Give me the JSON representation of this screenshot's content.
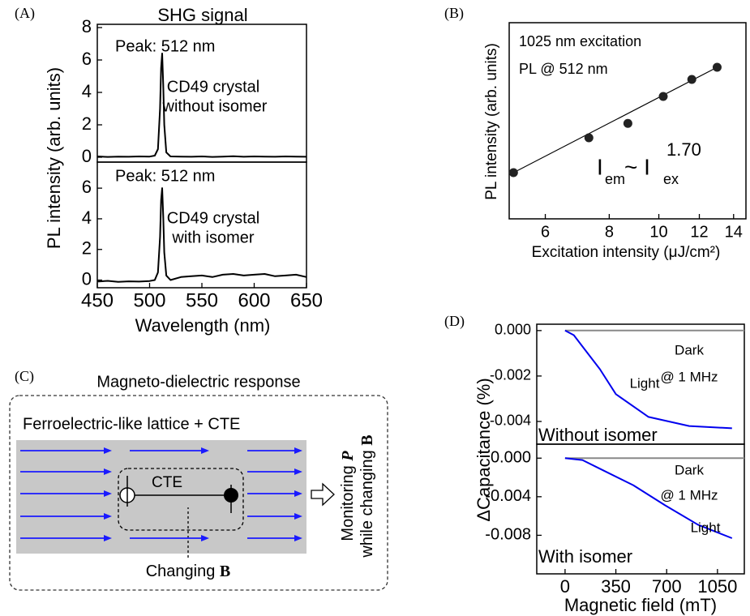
{
  "panel_labels": [
    "(A)",
    "(B)",
    "(C)",
    "(D)"
  ],
  "chart_data": [
    {
      "type": "line",
      "title": "SHG signal",
      "ylabel": "PL intensity (arb. units)",
      "annotations": [
        "Peak: 512 nm",
        "CD49 crystal",
        "without isomer"
      ],
      "x": [
        450,
        460,
        470,
        480,
        490,
        500,
        505,
        508,
        510,
        511,
        512,
        513,
        514,
        516,
        520,
        530,
        540,
        550,
        560,
        570,
        580,
        590,
        600,
        610,
        620,
        630,
        640,
        650
      ],
      "series": [
        {
          "color": "#000000",
          "values": [
            0.05,
            0.02,
            0.04,
            0.03,
            0.05,
            0.04,
            0.1,
            0.5,
            3.0,
            5.5,
            6.4,
            4.5,
            2.0,
            0.3,
            0.05,
            0.04,
            0.03,
            0.05,
            0.02,
            0.04,
            0.06,
            0.03,
            0.05,
            0.04,
            0.03,
            0.05,
            0.04,
            0.03
          ]
        }
      ],
      "xlim": [
        450,
        650
      ],
      "ylim": [
        -0.3,
        8.2
      ],
      "yticks": [
        0,
        2,
        4,
        6,
        8
      ]
    },
    {
      "type": "line",
      "xlabel": "Wavelength (nm)",
      "annotations": [
        "Peak: 512 nm",
        "CD49 crystal",
        "with isomer"
      ],
      "x": [
        450,
        460,
        470,
        480,
        490,
        500,
        505,
        508,
        510,
        511,
        512,
        513,
        514,
        516,
        520,
        530,
        540,
        550,
        560,
        570,
        580,
        590,
        600,
        610,
        620,
        630,
        640,
        650
      ],
      "series": [
        {
          "color": "#000000",
          "values": [
            -0.1,
            -0.05,
            -0.12,
            -0.08,
            -0.1,
            -0.06,
            0.0,
            0.5,
            2.8,
            5.2,
            6.0,
            4.2,
            1.8,
            0.3,
            0.0,
            0.2,
            0.25,
            0.3,
            0.2,
            0.35,
            0.4,
            0.3,
            0.35,
            0.4,
            0.25,
            0.3,
            0.35,
            0.2
          ]
        }
      ],
      "xlim": [
        450,
        650
      ],
      "ylim": [
        -0.5,
        7.7
      ],
      "xticks": [
        450,
        500,
        550,
        600,
        650
      ],
      "yticks": [
        0,
        2,
        4,
        6
      ]
    },
    {
      "type": "scatter",
      "xlabel": "Excitation intensity (μJ/cm²)",
      "ylabel": "PL intensity (arb. units)",
      "annotations": [
        "1025 nm excitation",
        "PL @ 512 nm"
      ],
      "formula": {
        "base": "I",
        "sub1": "em",
        "op": "~ I",
        "sub2": "ex",
        "exp": "1.70"
      },
      "x": [
        5.2,
        7.3,
        8.7,
        10.2,
        11.6,
        13.0
      ],
      "series": [
        {
          "color": "#222222",
          "values": [
            2.96,
            6.7,
            9.4,
            17.7,
            26.4,
            35.1
          ]
        }
      ],
      "fit": {
        "color": "#000000",
        "x": [
          5.2,
          13.0
        ],
        "values": [
          2.96,
          35.1
        ]
      },
      "xscale": "log",
      "yscale": "log",
      "xlim": [
        5.1,
        14.8
      ],
      "ylim": [
        1,
        100
      ],
      "xticks": [
        6,
        8,
        10,
        12,
        14
      ]
    },
    {
      "type": "line",
      "ylabel": "ΔCapacitance (%)",
      "annotations": [
        "@ 1 MHz",
        "Without isomer"
      ],
      "series": [
        {
          "name": "Dark",
          "color": "#888888",
          "x": [
            0,
            1235
          ],
          "values": [
            0,
            0
          ]
        },
        {
          "name": "Light",
          "color": "#0000ee",
          "x": [
            0,
            60,
            120,
            240,
            350,
            575,
            855,
            1150
          ],
          "values": [
            0,
            -0.0002,
            -0.0007,
            -0.0017,
            -0.0028,
            -0.0038,
            -0.0042,
            -0.0043
          ]
        }
      ],
      "xlim": [
        -195,
        1235
      ],
      "ylim": [
        -0.005,
        0.00028
      ],
      "yticks": [
        {
          "value": 0,
          "label": "0.000"
        },
        {
          "value": -0.002,
          "label": "-0.002"
        },
        {
          "value": -0.004,
          "label": "-0.004"
        }
      ]
    },
    {
      "type": "line",
      "xlabel": "Magnetic field (mT)",
      "annotations": [
        "@ 1 MHz",
        "With isomer"
      ],
      "series": [
        {
          "name": "Dark",
          "color": "#888888",
          "x": [
            0,
            1235
          ],
          "values": [
            0,
            0
          ]
        },
        {
          "name": "Light",
          "color": "#0000ee",
          "x": [
            0,
            120,
            240,
            470,
            690,
            915,
            1150
          ],
          "values": [
            0,
            -0.0002,
            -0.0011,
            -0.0028,
            -0.0049,
            -0.0069,
            -0.0083
          ]
        }
      ],
      "xlim": [
        -195,
        1235
      ],
      "ylim": [
        -0.012,
        0.00145
      ],
      "xticks": [
        0,
        350,
        700,
        1050
      ],
      "yticks": [
        {
          "value": 0,
          "label": "0.000"
        },
        {
          "value": -0.004,
          "label": "-0.004"
        },
        {
          "value": -0.008,
          "label": "-0.008"
        }
      ]
    }
  ],
  "diagram": {
    "title": "Magneto-dielectric response",
    "lattice": "Ferroelectric-like lattice + CTE",
    "cte": "CTE",
    "field": [
      "Changing ",
      "B"
    ],
    "monitor": [
      [
        "Monitoring ",
        "P"
      ],
      [
        "while changing ",
        "B"
      ]
    ]
  }
}
